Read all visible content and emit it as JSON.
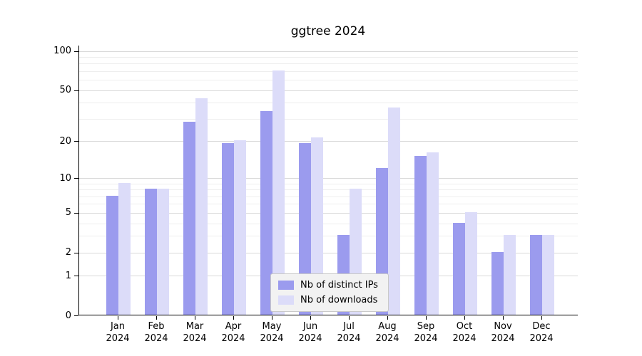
{
  "chart_data": {
    "type": "bar",
    "title": "ggtree 2024",
    "categories": [
      "Jan",
      "Feb",
      "Mar",
      "Apr",
      "May",
      "Jun",
      "Jul",
      "Aug",
      "Sep",
      "Oct",
      "Nov",
      "Dec"
    ],
    "category_year": "2024",
    "series": [
      {
        "name": "Nb of distinct IPs",
        "color": "#9b9bee",
        "values": [
          7,
          8,
          28,
          19,
          34,
          19,
          3,
          12,
          15,
          4,
          2,
          3
        ]
      },
      {
        "name": "Nb of downloads",
        "color": "#dcdcf9",
        "values": [
          9,
          8,
          43,
          20,
          70,
          21,
          8,
          36,
          16,
          5,
          3,
          3
        ]
      }
    ],
    "xlabel": "",
    "ylabel": "",
    "yscale": "log1p",
    "ylim": [
      0,
      110
    ],
    "yticks": [
      0,
      1,
      2,
      5,
      10,
      20,
      50,
      100
    ],
    "yticks_minor": [
      3,
      4,
      6,
      7,
      8,
      9,
      30,
      40,
      60,
      70,
      80,
      90
    ],
    "grid": "horizontal",
    "legend_position": "inside-bottom-center"
  }
}
